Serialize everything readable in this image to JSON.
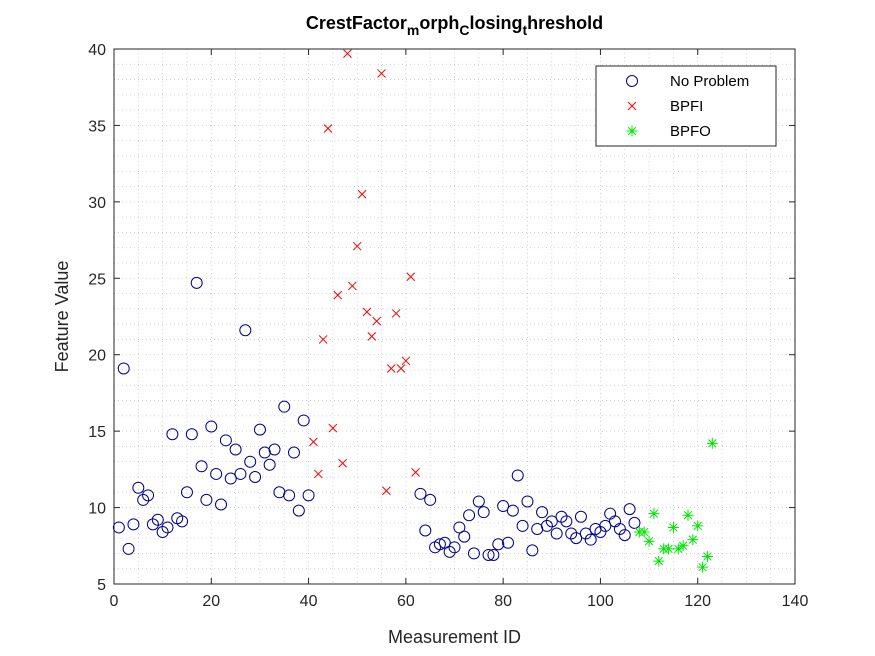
{
  "chart_data": {
    "type": "scatter",
    "title": {
      "parts": [
        {
          "text": "CrestFactor",
          "sub": false
        },
        {
          "text": "m",
          "sub": true
        },
        {
          "text": "orph",
          "sub": false
        },
        {
          "text": "C",
          "sub": true
        },
        {
          "text": "losing",
          "sub": false
        },
        {
          "text": "t",
          "sub": true
        },
        {
          "text": "hreshold",
          "sub": false
        }
      ]
    },
    "xlabel": "Measurement ID",
    "ylabel": "Feature Value",
    "xlim": [
      0,
      140
    ],
    "ylim": [
      5,
      40
    ],
    "xticks": [
      0,
      20,
      40,
      60,
      80,
      100,
      120,
      140
    ],
    "yticks": [
      5,
      10,
      15,
      20,
      25,
      30,
      35,
      40
    ],
    "grid": "minor-dotted",
    "legend_position": "top-right",
    "series": [
      {
        "name": "No Problem",
        "marker": "circle",
        "color": "#00008B",
        "points": [
          [
            1,
            8.7
          ],
          [
            2,
            19.1
          ],
          [
            3,
            7.3
          ],
          [
            4,
            8.9
          ],
          [
            5,
            11.3
          ],
          [
            6,
            10.5
          ],
          [
            7,
            10.8
          ],
          [
            8,
            8.9
          ],
          [
            9,
            9.2
          ],
          [
            10,
            8.4
          ],
          [
            11,
            8.7
          ],
          [
            12,
            14.8
          ],
          [
            13,
            9.3
          ],
          [
            14,
            9.1
          ],
          [
            15,
            11.0
          ],
          [
            16,
            14.8
          ],
          [
            17,
            24.7
          ],
          [
            18,
            12.7
          ],
          [
            19,
            10.5
          ],
          [
            20,
            15.3
          ],
          [
            21,
            12.2
          ],
          [
            22,
            10.2
          ],
          [
            23,
            14.4
          ],
          [
            24,
            11.9
          ],
          [
            25,
            13.8
          ],
          [
            26,
            12.2
          ],
          [
            27,
            21.6
          ],
          [
            28,
            13.0
          ],
          [
            29,
            12.0
          ],
          [
            30,
            15.1
          ],
          [
            31,
            13.6
          ],
          [
            32,
            12.8
          ],
          [
            33,
            13.8
          ],
          [
            34,
            11.0
          ],
          [
            35,
            16.6
          ],
          [
            36,
            10.8
          ],
          [
            37,
            13.6
          ],
          [
            38,
            9.8
          ],
          [
            39,
            15.7
          ],
          [
            40,
            10.8
          ],
          [
            63,
            10.9
          ],
          [
            64,
            8.5
          ],
          [
            65,
            10.5
          ],
          [
            66,
            7.4
          ],
          [
            67,
            7.6
          ],
          [
            68,
            7.7
          ],
          [
            69,
            7.1
          ],
          [
            70,
            7.4
          ],
          [
            71,
            8.7
          ],
          [
            72,
            8.1
          ],
          [
            73,
            9.5
          ],
          [
            74,
            7.0
          ],
          [
            75,
            10.4
          ],
          [
            76,
            9.7
          ],
          [
            77,
            6.9
          ],
          [
            78,
            6.9
          ],
          [
            79,
            7.6
          ],
          [
            80,
            10.1
          ],
          [
            81,
            7.7
          ],
          [
            82,
            9.8
          ],
          [
            83,
            12.1
          ],
          [
            84,
            8.8
          ],
          [
            85,
            10.4
          ],
          [
            86,
            7.2
          ],
          [
            87,
            8.6
          ],
          [
            88,
            9.7
          ],
          [
            89,
            8.8
          ],
          [
            90,
            9.1
          ],
          [
            91,
            8.3
          ],
          [
            92,
            9.4
          ],
          [
            93,
            9.1
          ],
          [
            94,
            8.3
          ],
          [
            95,
            8.0
          ],
          [
            96,
            9.4
          ],
          [
            97,
            8.3
          ],
          [
            98,
            7.9
          ],
          [
            99,
            8.6
          ],
          [
            100,
            8.4
          ],
          [
            101,
            8.8
          ],
          [
            102,
            9.6
          ],
          [
            103,
            9.1
          ],
          [
            104,
            8.6
          ],
          [
            105,
            8.2
          ],
          [
            106,
            9.9
          ],
          [
            107,
            9.0
          ]
        ]
      },
      {
        "name": "BPFI",
        "marker": "x",
        "color": "#FF0000",
        "points": [
          [
            41,
            14.3
          ],
          [
            42,
            12.2
          ],
          [
            43,
            21.0
          ],
          [
            44,
            34.8
          ],
          [
            45,
            15.2
          ],
          [
            46,
            23.9
          ],
          [
            47,
            12.9
          ],
          [
            48,
            39.7
          ],
          [
            49,
            24.5
          ],
          [
            50,
            27.1
          ],
          [
            51,
            30.5
          ],
          [
            52,
            22.8
          ],
          [
            53,
            21.2
          ],
          [
            54,
            22.2
          ],
          [
            55,
            38.4
          ],
          [
            56,
            11.1
          ],
          [
            57,
            19.1
          ],
          [
            58,
            22.7
          ],
          [
            59,
            19.1
          ],
          [
            60,
            19.6
          ],
          [
            61,
            25.1
          ],
          [
            62,
            12.3
          ]
        ]
      },
      {
        "name": "BPFO",
        "marker": "asterisk",
        "color": "#00E600",
        "points": [
          [
            108,
            8.4
          ],
          [
            109,
            8.4
          ],
          [
            110,
            7.8
          ],
          [
            111,
            9.6
          ],
          [
            112,
            6.5
          ],
          [
            113,
            7.3
          ],
          [
            114,
            7.3
          ],
          [
            115,
            8.7
          ],
          [
            116,
            7.3
          ],
          [
            117,
            7.5
          ],
          [
            118,
            9.5
          ],
          [
            119,
            7.9
          ],
          [
            120,
            8.8
          ],
          [
            121,
            6.1
          ],
          [
            122,
            6.8
          ],
          [
            123,
            14.2
          ]
        ]
      }
    ]
  }
}
